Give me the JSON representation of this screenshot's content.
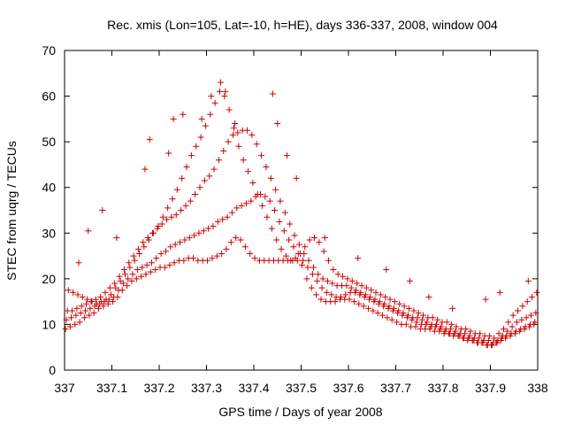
{
  "chart_data": {
    "type": "scatter",
    "title": "Rec. xmis (Lon=105, Lat=-10, h=HE), days 336-337, 2008, window 004",
    "xlabel": "GPS time / Days of year 2008",
    "ylabel": "STEC from uqrg / TECUs",
    "xlim": [
      337,
      338
    ],
    "ylim": [
      0,
      70
    ],
    "x_ticks": [
      337,
      337.1,
      337.2,
      337.3,
      337.4,
      337.5,
      337.6,
      337.7,
      337.8,
      337.9,
      338
    ],
    "x_tick_labels": [
      "337",
      "337.1",
      "337.2",
      "337.3",
      "337.4",
      "337.5",
      "337.6",
      "337.7",
      "337.8",
      "337.9",
      "338"
    ],
    "y_ticks": [
      0,
      10,
      20,
      30,
      40,
      50,
      60,
      70
    ],
    "y_tick_labels": [
      "0",
      "10",
      "20",
      "30",
      "40",
      "50",
      "60",
      "70"
    ],
    "grid": false,
    "legend": false,
    "marker": "+",
    "marker_color": "#cc0000",
    "series": [
      {
        "x": [
          337.002,
          337.012,
          337.022,
          337.032,
          337.042,
          337.052,
          337.062,
          337.072,
          337.082,
          337.092,
          337.102,
          337.112,
          337.122,
          337.132,
          337.142,
          337.152,
          337.162,
          337.172,
          337.182,
          337.192,
          337.202,
          337.212,
          337.222,
          337.232,
          337.242,
          337.252,
          337.262,
          337.272,
          337.282,
          337.292,
          337.302,
          337.312,
          337.322,
          337.332,
          337.342,
          337.352,
          337.362,
          337.372,
          337.382,
          337.392,
          337.402,
          337.412,
          337.422,
          337.432,
          337.442,
          337.452,
          337.462,
          337.472,
          337.482,
          337.492,
          337.502,
          337.512,
          337.522,
          337.532,
          337.542,
          337.552,
          337.562,
          337.572,
          337.582,
          337.592,
          337.602,
          337.612,
          337.622,
          337.632,
          337.642,
          337.652,
          337.662,
          337.672,
          337.682,
          337.692,
          337.702,
          337.712,
          337.722,
          337.732,
          337.742,
          337.752,
          337.762,
          337.772,
          337.782,
          337.792,
          337.802,
          337.812,
          337.822,
          337.832,
          337.842,
          337.852,
          337.862,
          337.872,
          337.882,
          337.892,
          337.902,
          337.912,
          337.922,
          337.932,
          337.942,
          337.952,
          337.962,
          337.972,
          337.982,
          337.992
        ],
        "y": [
          9,
          9.5,
          10,
          10.5,
          11.5,
          12,
          12.5,
          13.5,
          14,
          14.5,
          15,
          16,
          17.5,
          18.5,
          19.5,
          20,
          20.5,
          21,
          21.5,
          22,
          22.5,
          22.5,
          23,
          23.5,
          24,
          24,
          24.5,
          24.5,
          24,
          24,
          24,
          24.5,
          25,
          25.5,
          26.5,
          28,
          29,
          28.5,
          27,
          25.5,
          24.5,
          24,
          24,
          24,
          24,
          24,
          24,
          24,
          24,
          24,
          23,
          20,
          18,
          16.5,
          15.5,
          15,
          15,
          15,
          15.5,
          15.5,
          15.5,
          15,
          14.5,
          14,
          13.5,
          13,
          12.5,
          12,
          11.5,
          11,
          10.5,
          10,
          10,
          9.5,
          9.5,
          9,
          9,
          9,
          8.5,
          8.5,
          8,
          8,
          7.5,
          7.5,
          7,
          6.5,
          6.5,
          6,
          6,
          5.5,
          5.5,
          6,
          6.5,
          7,
          7.5,
          8,
          8.5,
          9,
          9.5,
          10
        ]
      },
      {
        "x": [
          337.004,
          337.014,
          337.024,
          337.034,
          337.044,
          337.054,
          337.064,
          337.074,
          337.084,
          337.094,
          337.104,
          337.114,
          337.124,
          337.134,
          337.144,
          337.154,
          337.164,
          337.174,
          337.184,
          337.194,
          337.204,
          337.214,
          337.224,
          337.234,
          337.244,
          337.254,
          337.264,
          337.274,
          337.284,
          337.294,
          337.304,
          337.314,
          337.324,
          337.334,
          337.344,
          337.354,
          337.364,
          337.374,
          337.384,
          337.394,
          337.404,
          337.414,
          337.424,
          337.434,
          337.444,
          337.454,
          337.464,
          337.474,
          337.484,
          337.494,
          337.504,
          337.514,
          337.524,
          337.534,
          337.544,
          337.554,
          337.564,
          337.574,
          337.584,
          337.594,
          337.604,
          337.614,
          337.624,
          337.634,
          337.644,
          337.654,
          337.664,
          337.674,
          337.684,
          337.694,
          337.704,
          337.714,
          337.724,
          337.734,
          337.744,
          337.754,
          337.764,
          337.774,
          337.784,
          337.794,
          337.804,
          337.814,
          337.824,
          337.834,
          337.844,
          337.854,
          337.864,
          337.874,
          337.884,
          337.894,
          337.904,
          337.914,
          337.924,
          337.934,
          337.944,
          337.954,
          337.964,
          337.974,
          337.984,
          337.994
        ],
        "y": [
          11,
          11.5,
          12,
          12.5,
          13,
          13.5,
          14,
          14.5,
          15,
          15.5,
          16,
          17.5,
          19,
          20,
          21,
          22,
          22.5,
          23,
          23.5,
          24.5,
          25.5,
          26,
          27,
          27.5,
          28,
          28.5,
          29,
          29.5,
          30,
          30.5,
          31,
          31.5,
          32.5,
          33,
          33.5,
          34.5,
          35.5,
          36,
          36.5,
          37,
          38,
          38.5,
          38,
          37,
          35,
          32.5,
          30.5,
          28.5,
          27,
          25.5,
          24,
          22.5,
          21,
          19.5,
          18,
          17,
          16.5,
          16,
          16,
          16.5,
          17,
          17,
          16.5,
          16,
          15.5,
          15,
          14.5,
          14,
          13.5,
          13,
          12.5,
          12,
          11.5,
          11,
          10.5,
          10,
          10,
          9.5,
          9.5,
          9,
          8.5,
          8,
          8,
          7.5,
          7,
          7,
          6.5,
          6,
          6,
          5.5,
          5.5,
          6,
          7,
          7.5,
          8,
          8.5,
          9,
          9.5,
          10,
          10.5
        ]
      },
      {
        "x": [
          337.006,
          337.016,
          337.026,
          337.036,
          337.046,
          337.056,
          337.066,
          337.076,
          337.086,
          337.096,
          337.106,
          337.116,
          337.126,
          337.136,
          337.146,
          337.156,
          337.166,
          337.176,
          337.186,
          337.196,
          337.206,
          337.216,
          337.226,
          337.236,
          337.246,
          337.256,
          337.266,
          337.276,
          337.286,
          337.296,
          337.306,
          337.316,
          337.326,
          337.336,
          337.346,
          337.356,
          337.366,
          337.376,
          337.386,
          337.396,
          337.406,
          337.416,
          337.426,
          337.436,
          337.446,
          337.456,
          337.466,
          337.476,
          337.486,
          337.496,
          337.506,
          337.516,
          337.526,
          337.536,
          337.546,
          337.556,
          337.566,
          337.576,
          337.586,
          337.596,
          337.606,
          337.616,
          337.626,
          337.636,
          337.646,
          337.656,
          337.666,
          337.676,
          337.686,
          337.696,
          337.706,
          337.716,
          337.726,
          337.736,
          337.746,
          337.756,
          337.766,
          337.776,
          337.786,
          337.796,
          337.806,
          337.816,
          337.826,
          337.836,
          337.846,
          337.856,
          337.866,
          337.876,
          337.886,
          337.896,
          337.906,
          337.916,
          337.926,
          337.936,
          337.946,
          337.956,
          337.966,
          337.976,
          337.986,
          337.996
        ],
        "y": [
          13,
          13,
          13.5,
          14,
          14.5,
          15,
          15.5,
          16,
          17,
          18,
          19,
          20.5,
          22,
          23.5,
          25,
          26.5,
          28,
          29,
          30,
          31,
          32,
          33,
          33.5,
          34,
          35,
          36,
          37,
          38.5,
          40,
          41.5,
          42.5,
          44,
          46,
          48,
          50,
          51.5,
          52,
          52.5,
          52.5,
          51.5,
          49.5,
          47,
          44.5,
          42,
          39.5,
          37,
          34.5,
          32,
          29.5,
          27.5,
          25.5,
          24,
          22.5,
          21,
          20,
          19.5,
          19,
          18.5,
          18.5,
          18.5,
          18,
          17.5,
          17,
          16.5,
          16,
          15.5,
          15,
          14.5,
          14,
          13.5,
          13,
          12.5,
          12,
          11.5,
          11.5,
          11,
          10.5,
          10,
          10,
          9.5,
          9,
          9,
          8.5,
          8,
          8,
          7.5,
          7,
          7,
          6.5,
          6.5,
          6,
          6.5,
          7.5,
          8.5,
          9.5,
          10.5,
          11,
          11.5,
          12,
          12.5
        ]
      },
      {
        "x": [
          337.008,
          337.018,
          337.028,
          337.038,
          337.048,
          337.058,
          337.068,
          337.078,
          337.088,
          337.098,
          337.108,
          337.118,
          337.128,
          337.138,
          337.148,
          337.158,
          337.168,
          337.178,
          337.188,
          337.198,
          337.208,
          337.218,
          337.228,
          337.238,
          337.248,
          337.258,
          337.268,
          337.278,
          337.288,
          337.298,
          337.308,
          337.318,
          337.328,
          337.338,
          337.348,
          337.358,
          337.368,
          337.378,
          337.388,
          337.398,
          337.408,
          337.418,
          337.428,
          337.438,
          337.448,
          337.458,
          337.468,
          337.478,
          337.488,
          337.498,
          337.508,
          337.518,
          337.528,
          337.538,
          337.548,
          337.558,
          337.568,
          337.578,
          337.588,
          337.598,
          337.608,
          337.618,
          337.628,
          337.638,
          337.648,
          337.658,
          337.668,
          337.678,
          337.688,
          337.698,
          337.708,
          337.718,
          337.728,
          337.738,
          337.748,
          337.758,
          337.768,
          337.778,
          337.788,
          337.798,
          337.808,
          337.818,
          337.828,
          337.838,
          337.848,
          337.858,
          337.868,
          337.878,
          337.888,
          337.898,
          337.908,
          337.918,
          337.928,
          337.938,
          337.948,
          337.958,
          337.968,
          337.978,
          337.988,
          337.998
        ],
        "y": [
          17.5,
          17,
          16.5,
          16,
          15.5,
          15,
          14.5,
          15,
          15.5,
          16.5,
          18,
          19.5,
          21,
          22.5,
          24,
          25.5,
          27,
          28.5,
          30,
          31.5,
          33.5,
          35.5,
          37.5,
          39.5,
          42,
          44.5,
          47,
          49,
          51,
          53.5,
          56,
          58.5,
          61,
          60,
          57,
          53,
          49,
          46,
          43.5,
          41,
          38.5,
          36,
          33.5,
          31,
          28.5,
          26.5,
          25,
          24,
          24.5,
          25.5,
          27,
          28.5,
          29,
          28,
          26,
          24,
          22,
          21,
          20.5,
          20,
          19.5,
          19,
          18.5,
          18,
          17.5,
          17,
          16.5,
          16,
          15.5,
          15,
          14.5,
          14,
          13.5,
          13,
          12.5,
          12,
          11.5,
          11.5,
          11,
          10.5,
          10.5,
          10,
          9.5,
          9,
          9,
          8.5,
          8,
          8,
          7.5,
          7.5,
          7,
          8,
          9,
          10.5,
          12,
          13,
          14,
          15,
          16,
          17
        ]
      },
      {
        "x": [
          337.03,
          337.05,
          337.08,
          337.11,
          337.17,
          337.18,
          337.22,
          337.23,
          337.25,
          337.29,
          337.31,
          337.33,
          337.34,
          337.36,
          337.44,
          337.45,
          337.47,
          337.49,
          337.55,
          337.62,
          337.68,
          337.73,
          337.77,
          337.82,
          337.89,
          337.92,
          337.98
        ],
        "y": [
          23.5,
          30.5,
          35,
          29,
          44,
          50.5,
          47.5,
          55,
          56,
          55,
          60,
          63,
          61,
          54,
          60.5,
          54,
          47,
          42,
          29,
          24.5,
          22,
          19.5,
          16,
          13.5,
          15.5,
          17,
          19.5
        ]
      }
    ]
  }
}
